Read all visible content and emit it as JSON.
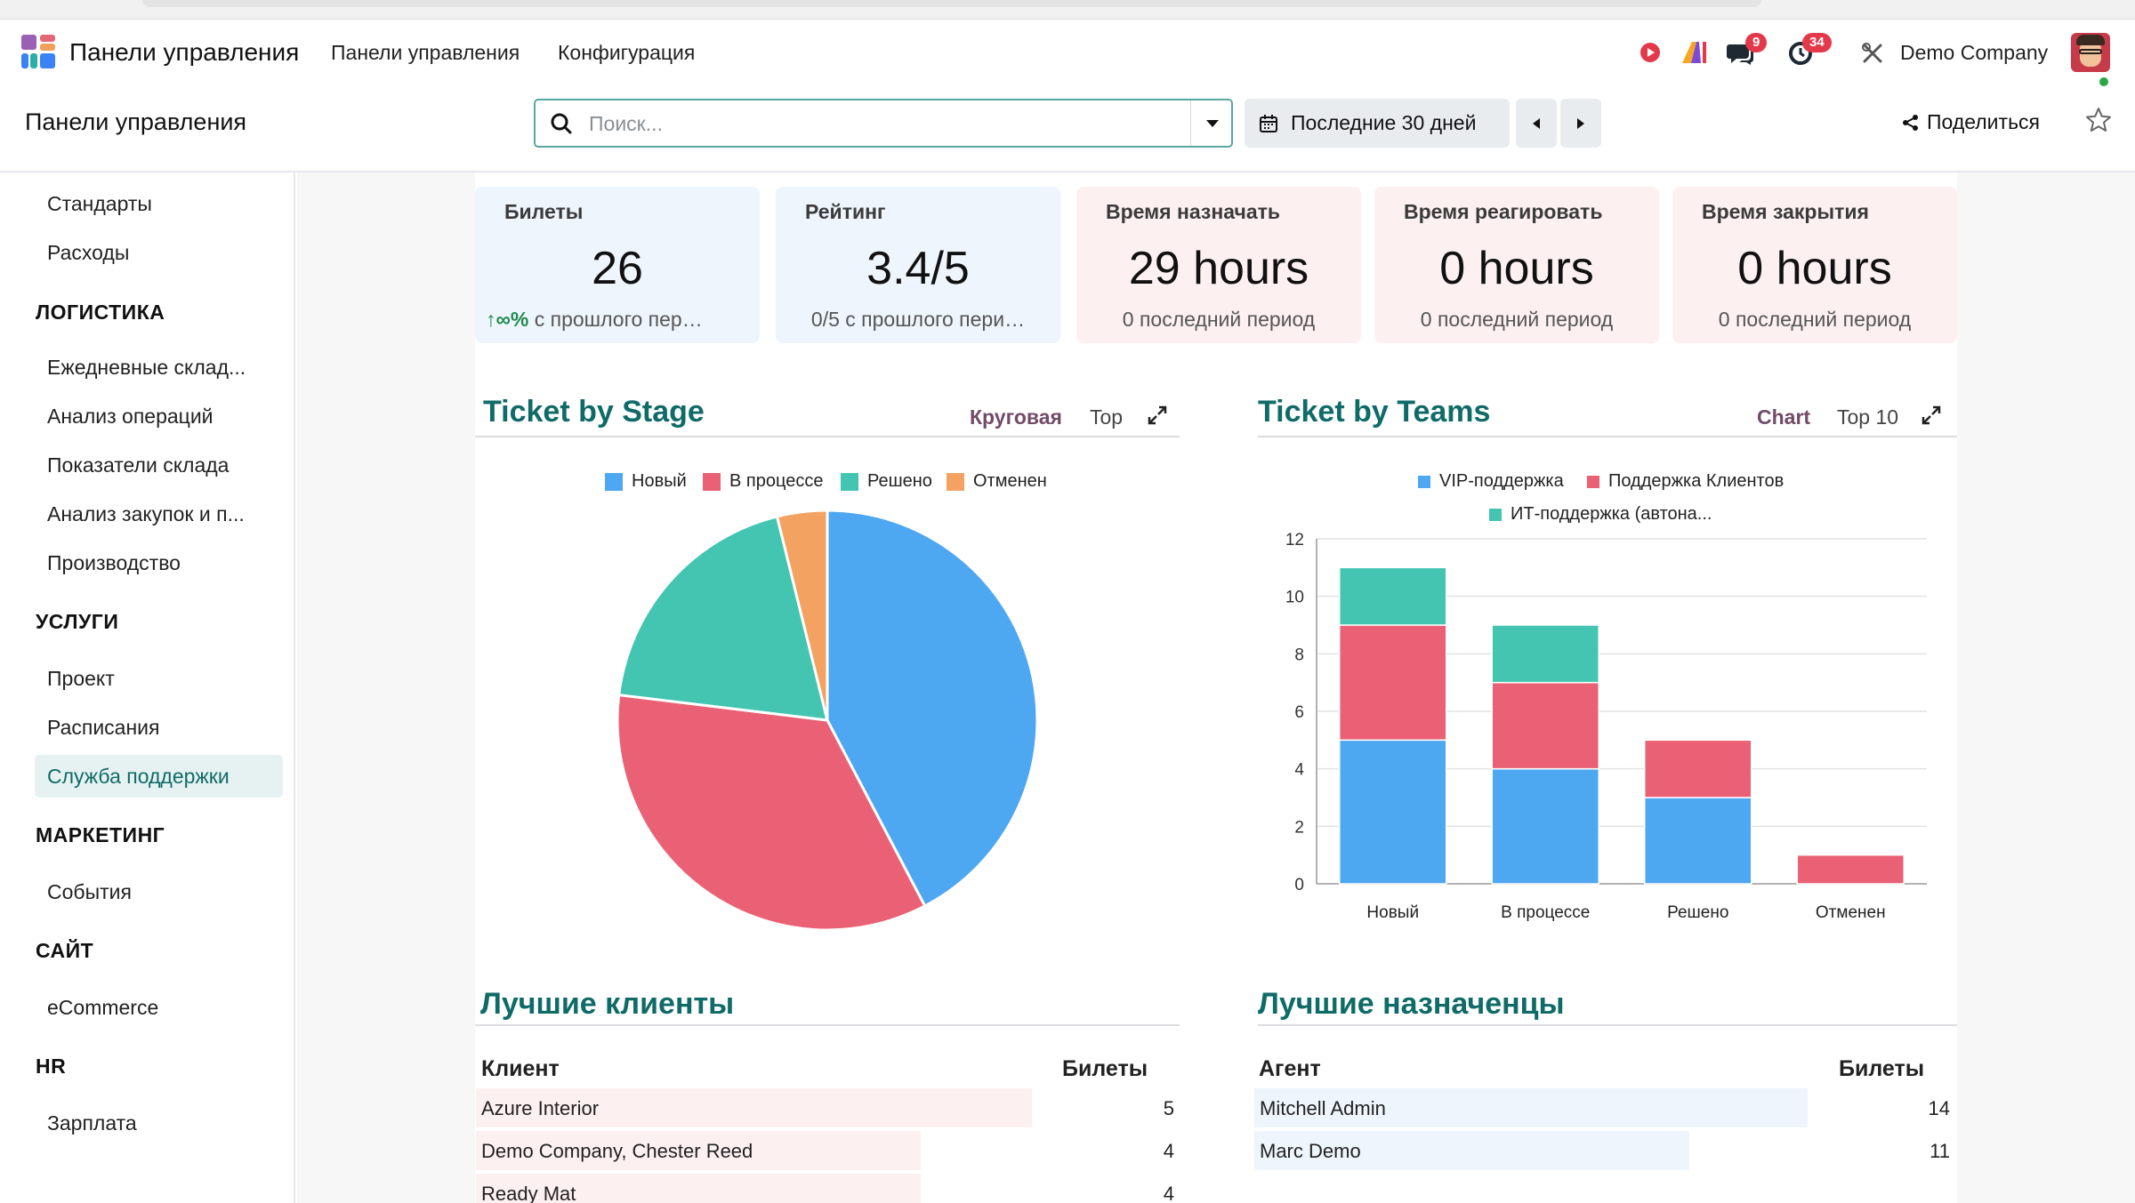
{
  "navbar": {
    "app_title": "Панели управления",
    "menu": [
      "Панели управления",
      "Конфигурация"
    ],
    "messages_badge": "9",
    "activities_badge": "34",
    "company": "Demo Company",
    "icons": [
      "apps-icon",
      "record-icon",
      "ai-icon",
      "chat-icon",
      "clock-icon",
      "tools-icon",
      "avatar"
    ]
  },
  "control_panel": {
    "title": "Панели управления",
    "search_placeholder": "Поиск...",
    "date_filter": "Последние 30 дней",
    "share_label": "Поделиться"
  },
  "sidebar": {
    "items_top": [
      "Стандарты",
      "Расходы"
    ],
    "groups": [
      {
        "heading": "ЛОГИСТИКА",
        "items": [
          "Ежедневные склад...",
          "Анализ операций",
          "Показатели склада",
          "Анализ закупок и п...",
          "Производство"
        ]
      },
      {
        "heading": "УСЛУГИ",
        "items": [
          "Проект",
          "Расписания",
          "Служба поддержки"
        ]
      },
      {
        "heading": "МАРКЕТИНГ",
        "items": [
          "События"
        ]
      },
      {
        "heading": "САЙТ",
        "items": [
          "eCommerce"
        ]
      },
      {
        "heading": "HR",
        "items": [
          "Зарплата"
        ]
      }
    ],
    "active_item": "Служба поддержки"
  },
  "kpis": [
    {
      "title": "Билеты",
      "value": "26",
      "trend": "∞%",
      "sub": "с прошлого пер…"
    },
    {
      "title": "Рейтинг",
      "value": "3.4/5",
      "sub": "0/5 с прошлого пери…"
    },
    {
      "title": "Время назначать",
      "value": "29 hours",
      "sub": "0 последний период"
    },
    {
      "title": "Время реагировать",
      "value": "0 hours",
      "sub": "0 последний период"
    },
    {
      "title": "Время закрытия",
      "value": "0 hours",
      "sub": "0 последний период"
    }
  ],
  "stage_section": {
    "title": "Ticket by Stage",
    "option_active": "Круговая",
    "option_other": "Top"
  },
  "teams_section": {
    "title": "Ticket by Teams",
    "option_active": "Chart",
    "option_other": "Top 10"
  },
  "chart_data": [
    {
      "type": "pie",
      "categories": [
        "Новый",
        "В процессе",
        "Решено",
        "Отменен"
      ],
      "values": [
        11,
        9,
        5,
        1
      ],
      "colors": [
        "#4ea7f1",
        "#ea6175",
        "#43c5b1",
        "#f4a261"
      ],
      "legend": "top"
    },
    {
      "type": "bar",
      "stacked": true,
      "categories": [
        "Новый",
        "В процессе",
        "Решено",
        "Отменен"
      ],
      "series": [
        {
          "name": "VIP-поддержка",
          "values": [
            5,
            4,
            3,
            0
          ],
          "color": "#4ea7f1"
        },
        {
          "name": "Поддержка Клиентов",
          "values": [
            4,
            3,
            2,
            1
          ],
          "color": "#ea6175"
        },
        {
          "name": "ИТ-поддержка (автона...",
          "values": [
            2,
            2,
            0,
            0
          ],
          "color": "#43c5b1"
        }
      ],
      "ylim": [
        0,
        12
      ],
      "yticks": [
        0,
        2,
        4,
        6,
        8,
        10,
        12
      ],
      "legend": "top",
      "grid": true
    }
  ],
  "customers": {
    "title": "Лучшие клиенты",
    "col_name": "Клиент",
    "col_count": "Билеты",
    "rows": [
      {
        "name": "Azure Interior",
        "count": 5
      },
      {
        "name": "Demo Company, Chester Reed",
        "count": 4
      },
      {
        "name": "Ready Mat",
        "count": 4
      }
    ]
  },
  "assignees": {
    "title": "Лучшие назначенцы",
    "col_name": "Агент",
    "col_count": "Билеты",
    "rows": [
      {
        "name": "Mitchell Admin",
        "count": 14
      },
      {
        "name": "Marc Demo",
        "count": 11
      }
    ]
  }
}
